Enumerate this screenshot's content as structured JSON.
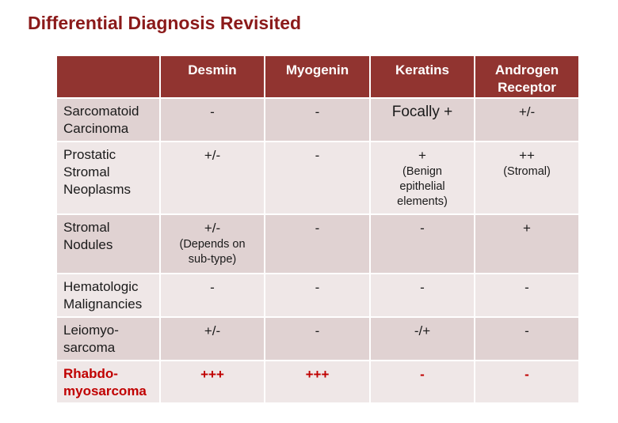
{
  "title": "Differential Diagnosis Revisited",
  "table": {
    "headers": [
      "Desmin",
      "Myogenin",
      "Keratins",
      "Androgen Receptor"
    ],
    "rows": [
      {
        "label": [
          "Sarcomatoid",
          "Carcinoma"
        ],
        "cells": [
          {
            "value": "-"
          },
          {
            "value": "-"
          },
          {
            "value": "Focally +"
          },
          {
            "value": "+/-"
          }
        ]
      },
      {
        "label": [
          "Prostatic",
          "Stromal",
          "Neoplasms"
        ],
        "cells": [
          {
            "value": "+/-"
          },
          {
            "value": "-"
          },
          {
            "value": "+",
            "note": [
              "(Benign",
              "epithelial",
              "elements)"
            ]
          },
          {
            "value": "++",
            "note": [
              "(Stromal)"
            ]
          }
        ]
      },
      {
        "label": [
          "Stromal",
          "Nodules"
        ],
        "cells": [
          {
            "value": "+/-",
            "note": [
              "(Depends on",
              "sub-type)"
            ]
          },
          {
            "value": "-"
          },
          {
            "value": "-"
          },
          {
            "value": "+"
          }
        ]
      },
      {
        "label": [
          "Hematologic",
          "Malignancies"
        ],
        "cells": [
          {
            "value": "-"
          },
          {
            "value": "-"
          },
          {
            "value": "-"
          },
          {
            "value": "-"
          }
        ]
      },
      {
        "label": [
          "Leiomyo-",
          "sarcoma"
        ],
        "cells": [
          {
            "value": "+/-"
          },
          {
            "value": "-"
          },
          {
            "value": "-/+"
          },
          {
            "value": "-"
          }
        ]
      },
      {
        "label": [
          "Rhabdo-",
          "myosarcoma"
        ],
        "cells": [
          {
            "value": "+++"
          },
          {
            "value": "+++"
          },
          {
            "value": "-"
          },
          {
            "value": "-"
          }
        ]
      }
    ]
  }
}
